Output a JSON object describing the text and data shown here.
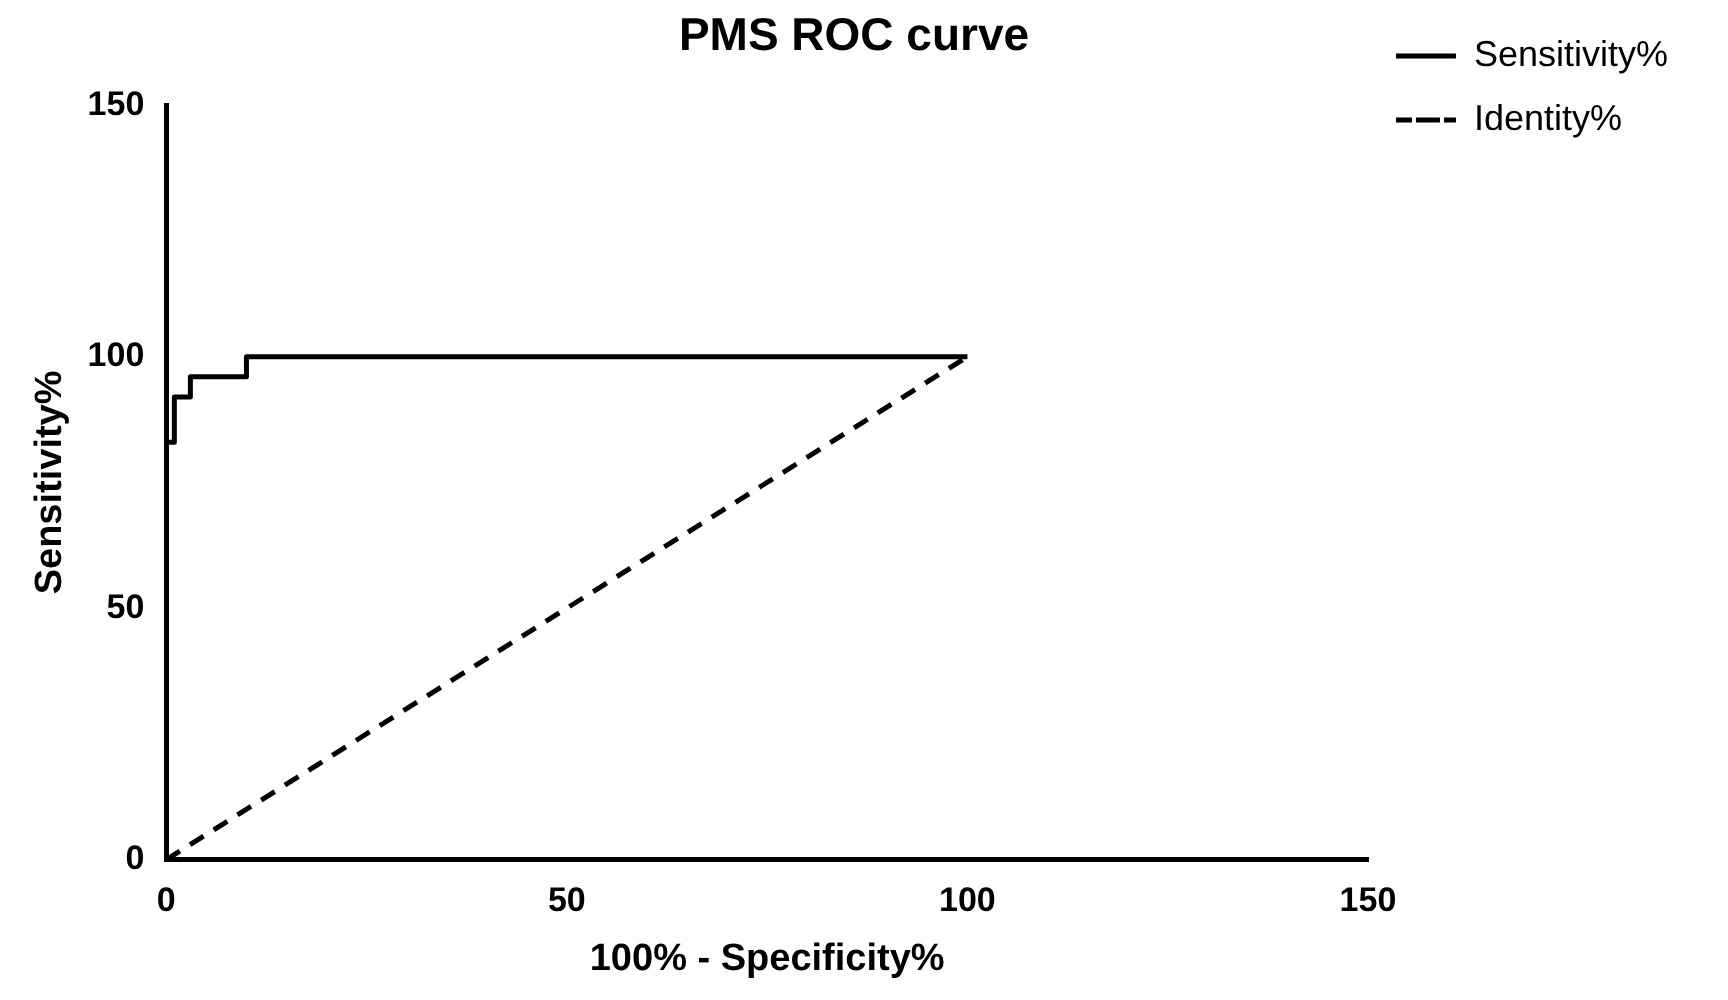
{
  "chart_data": {
    "type": "line",
    "title": "PMS ROC curve",
    "xlabel": "100% - Specificity%",
    "ylabel": "Sensitivity%",
    "xlim": [
      0,
      150
    ],
    "xticks": [
      0,
      50,
      100,
      150
    ],
    "ylim": [
      0,
      150
    ],
    "yticks": [
      0,
      50,
      100,
      150
    ],
    "grid": false,
    "legend": "top right",
    "marker": "none",
    "series": [
      {
        "name": "Sensitivity%",
        "color": "#000000",
        "line_style": "solid",
        "x": [
          0,
          1,
          1,
          3,
          3,
          10,
          10,
          100
        ],
        "values": [
          83,
          83,
          92,
          92,
          96,
          96,
          100,
          100
        ]
      },
      {
        "name": "Identity%",
        "color": "#000000",
        "line_style": "dashed",
        "x": [
          0,
          100
        ],
        "values": [
          0,
          100
        ]
      }
    ]
  }
}
